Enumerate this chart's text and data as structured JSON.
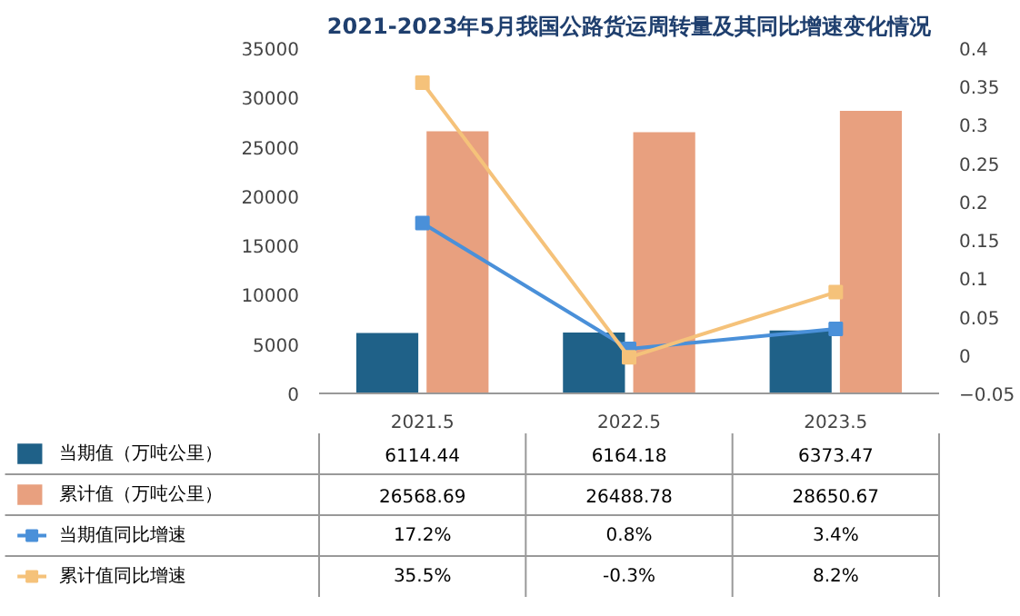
{
  "chart_data": {
    "type": "bar",
    "title": "2021-2023年5月我国公路货运周转量及其同比增速变化情况",
    "categories": [
      "2021.5",
      "2022.5",
      "2023.5"
    ],
    "series": [
      {
        "name": "当期值（万吨公里）",
        "color": "#1f6188",
        "values": [
          6114.44,
          6164.18,
          6373.47
        ],
        "value_labels": [
          "6114.44",
          "6164.18",
          "6373.47"
        ]
      },
      {
        "name": "累计值（万吨公里）",
        "color": "#e8a07f",
        "values": [
          26568.69,
          26488.78,
          28650.67
        ],
        "value_labels": [
          "26568.69",
          "26488.78",
          "28650.67"
        ]
      },
      {
        "name": "当期值同比增速",
        "type": "line",
        "axis": "y2",
        "marker": "square",
        "color": "#4a90d9",
        "values": [
          0.172,
          0.008,
          0.034
        ],
        "value_labels": [
          "17.2%",
          "0.8%",
          "3.4%"
        ]
      },
      {
        "name": "累计值同比增速",
        "type": "line",
        "axis": "y2",
        "marker": "square",
        "color": "#f5c27a",
        "values": [
          0.355,
          -0.003,
          0.082
        ],
        "value_labels": [
          "35.5%",
          "-0.3%",
          "8.2%"
        ]
      }
    ],
    "ylim": [
      0,
      35000
    ],
    "yticks": [
      0,
      5000,
      10000,
      15000,
      20000,
      25000,
      30000,
      35000
    ],
    "y2lim": [
      -0.05,
      0.4
    ],
    "y2ticks": [
      -0.05,
      0,
      0.05,
      0.1,
      0.15,
      0.2,
      0.25,
      0.3,
      0.35,
      0.4
    ],
    "legend": "bottom",
    "grid": false
  }
}
